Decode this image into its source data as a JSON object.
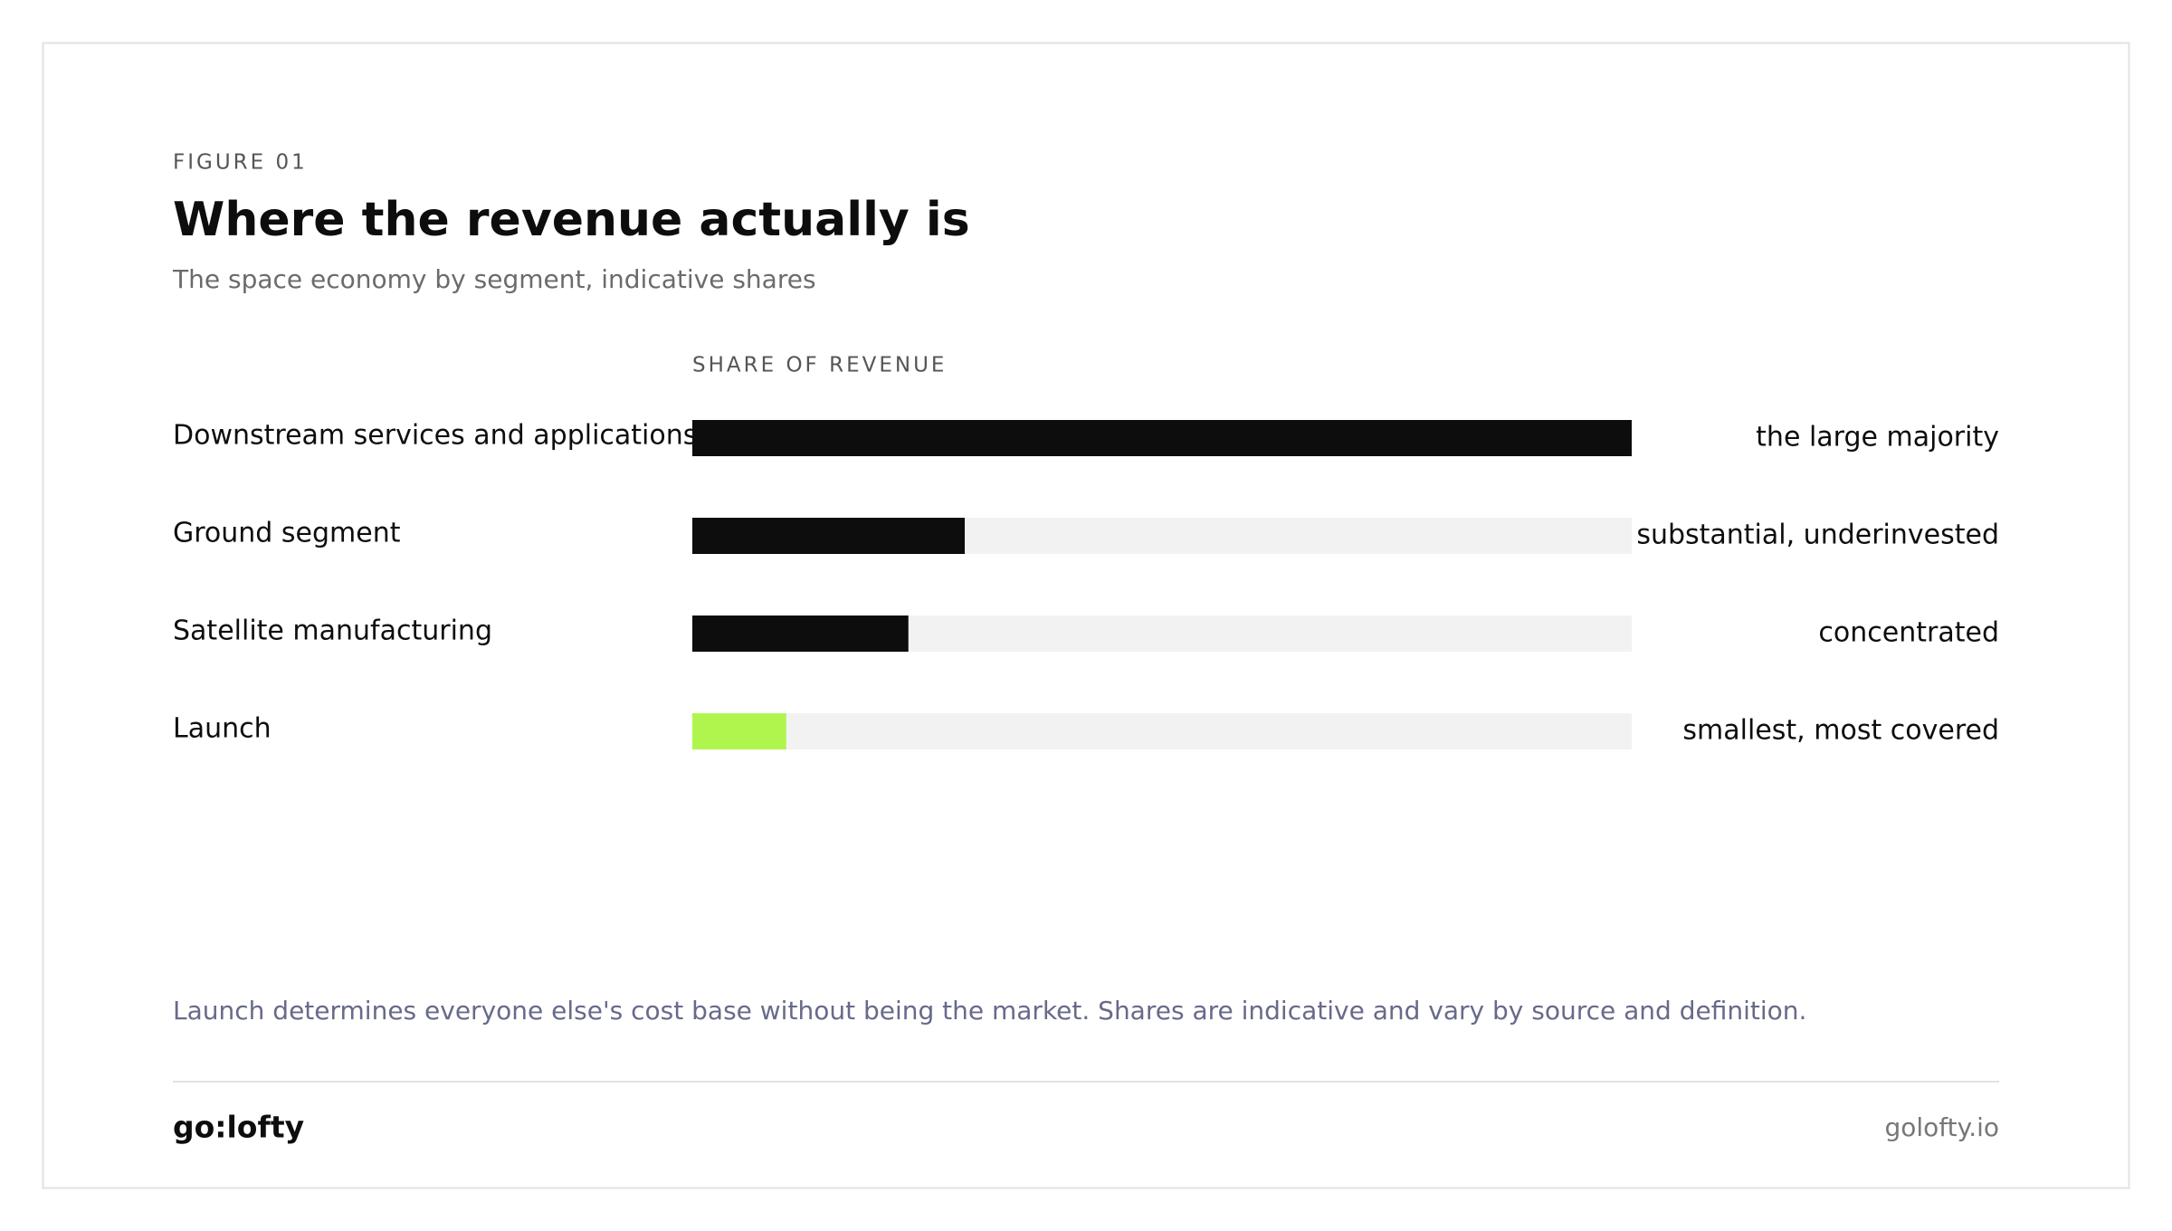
{
  "chart_data": {
    "type": "bar",
    "eyebrow": "FIGURE 01",
    "title": "Where the revenue actually is",
    "subtitle": "The space economy by segment, indicative shares",
    "axis_label": "SHARE OF REVENUE",
    "categories": [
      "Downstream services and applications",
      "Ground segment",
      "Satellite manufacturing",
      "Launch"
    ],
    "values": [
      100,
      29,
      23,
      10
    ],
    "notes": [
      "the large majority",
      "substantial, underinvested",
      "concentrated",
      "smallest, most covered"
    ],
    "colors": [
      "#0d0d0d",
      "#0d0d0d",
      "#0d0d0d",
      "#b0f54e"
    ],
    "track_color": "#f2f2f3",
    "xlim": [
      0,
      100
    ],
    "footnote": "Launch determines everyone else's cost base without being the market. Shares are indicative and vary by source and definition."
  },
  "footer": {
    "logo": "go:lofty",
    "url": "golofty.io"
  }
}
